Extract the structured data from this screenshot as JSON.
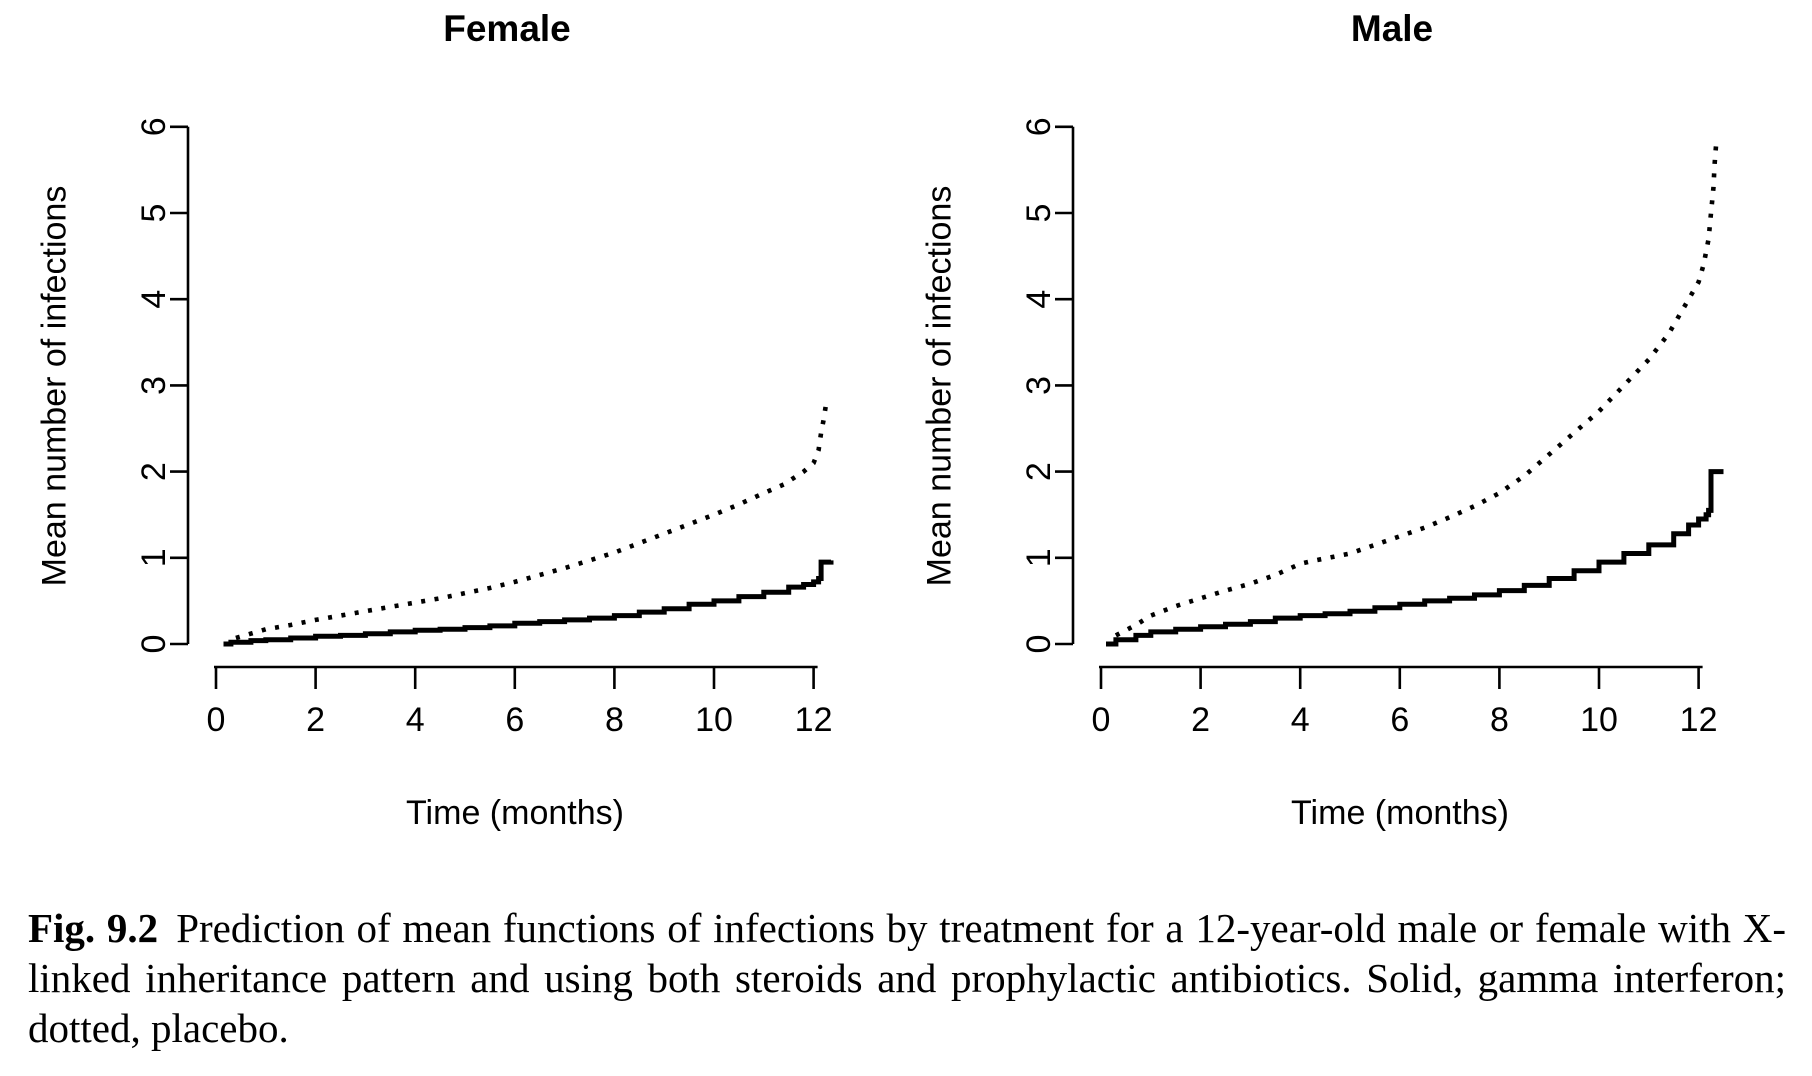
{
  "figure": {
    "caption_label": "Fig. 9.2",
    "caption_text": "Prediction of mean functions of infections by treatment for a 12-year-old male or female with X-linked inheritance pattern and using both steroids and prophylactic antibiotics. Solid, gamma interferon; dotted, placebo."
  },
  "colors": {
    "foreground": "#000000",
    "background": "#ffffff"
  },
  "chart_data": [
    {
      "type": "line",
      "title": "Female",
      "xlabel": "Time (months)",
      "ylabel": "Mean number of infections",
      "xlim": [
        0,
        12.6
      ],
      "ylim": [
        0,
        6
      ],
      "xticks": [
        0,
        2,
        4,
        6,
        8,
        10,
        12
      ],
      "yticks": [
        0,
        1,
        2,
        3,
        4,
        5,
        6
      ],
      "grid": false,
      "legend": "none",
      "series": [
        {
          "name": "gamma interferon",
          "line_style": "solid",
          "step": true,
          "points": [
            [
              0.15,
              0.0
            ],
            [
              0.3,
              0.02
            ],
            [
              0.7,
              0.04
            ],
            [
              1,
              0.05
            ],
            [
              1.5,
              0.07
            ],
            [
              2,
              0.09
            ],
            [
              2.5,
              0.1
            ],
            [
              3,
              0.12
            ],
            [
              3.5,
              0.14
            ],
            [
              4,
              0.16
            ],
            [
              4.5,
              0.17
            ],
            [
              5,
              0.19
            ],
            [
              5.5,
              0.21
            ],
            [
              6,
              0.24
            ],
            [
              6.5,
              0.26
            ],
            [
              7,
              0.28
            ],
            [
              7.5,
              0.3
            ],
            [
              8,
              0.33
            ],
            [
              8.5,
              0.37
            ],
            [
              9,
              0.41
            ],
            [
              9.5,
              0.46
            ],
            [
              10,
              0.5
            ],
            [
              10.5,
              0.55
            ],
            [
              11,
              0.6
            ],
            [
              11.5,
              0.66
            ],
            [
              11.8,
              0.69
            ],
            [
              12,
              0.72
            ],
            [
              12.1,
              0.76
            ],
            [
              12.15,
              0.95
            ],
            [
              12.35,
              0.97
            ]
          ]
        },
        {
          "name": "placebo",
          "line_style": "dotted",
          "step": false,
          "points": [
            [
              0.4,
              0.07
            ],
            [
              1,
              0.17
            ],
            [
              1.5,
              0.22
            ],
            [
              2,
              0.28
            ],
            [
              2.5,
              0.33
            ],
            [
              3,
              0.38
            ],
            [
              3.5,
              0.43
            ],
            [
              4,
              0.48
            ],
            [
              4.5,
              0.53
            ],
            [
              5,
              0.59
            ],
            [
              5.5,
              0.65
            ],
            [
              6,
              0.72
            ],
            [
              6.5,
              0.8
            ],
            [
              7,
              0.88
            ],
            [
              7.5,
              0.97
            ],
            [
              8,
              1.06
            ],
            [
              8.5,
              1.17
            ],
            [
              9,
              1.28
            ],
            [
              9.5,
              1.39
            ],
            [
              10,
              1.5
            ],
            [
              10.5,
              1.62
            ],
            [
              11,
              1.75
            ],
            [
              11.4,
              1.85
            ],
            [
              11.8,
              2.0
            ],
            [
              12,
              2.1
            ],
            [
              12.1,
              2.25
            ],
            [
              12.15,
              2.45
            ],
            [
              12.2,
              2.6
            ],
            [
              12.25,
              2.78
            ]
          ]
        }
      ]
    },
    {
      "type": "line",
      "title": "Male",
      "xlabel": "Time (months)",
      "ylabel": "Mean number of infections",
      "xlim": [
        0,
        12.6
      ],
      "ylim": [
        0,
        6
      ],
      "xticks": [
        0,
        2,
        4,
        6,
        8,
        10,
        12
      ],
      "yticks": [
        0,
        1,
        2,
        3,
        4,
        5,
        6
      ],
      "grid": false,
      "legend": "none",
      "series": [
        {
          "name": "gamma interferon",
          "line_style": "solid",
          "step": true,
          "points": [
            [
              0.1,
              0.0
            ],
            [
              0.3,
              0.05
            ],
            [
              0.7,
              0.1
            ],
            [
              1,
              0.14
            ],
            [
              1.5,
              0.17
            ],
            [
              2,
              0.2
            ],
            [
              2.5,
              0.23
            ],
            [
              3,
              0.26
            ],
            [
              3.5,
              0.3
            ],
            [
              4,
              0.33
            ],
            [
              4.5,
              0.35
            ],
            [
              5,
              0.38
            ],
            [
              5.5,
              0.42
            ],
            [
              6,
              0.46
            ],
            [
              6.5,
              0.5
            ],
            [
              7,
              0.53
            ],
            [
              7.5,
              0.57
            ],
            [
              8,
              0.62
            ],
            [
              8.5,
              0.68
            ],
            [
              9,
              0.76
            ],
            [
              9.5,
              0.85
            ],
            [
              10,
              0.95
            ],
            [
              10.5,
              1.05
            ],
            [
              11,
              1.15
            ],
            [
              11.5,
              1.28
            ],
            [
              11.8,
              1.38
            ],
            [
              12,
              1.45
            ],
            [
              12.15,
              1.5
            ],
            [
              12.2,
              1.55
            ],
            [
              12.25,
              2.0
            ],
            [
              12.5,
              2.0
            ]
          ]
        },
        {
          "name": "placebo",
          "line_style": "dotted",
          "step": false,
          "points": [
            [
              0.3,
              0.1
            ],
            [
              0.7,
              0.22
            ],
            [
              1,
              0.33
            ],
            [
              1.5,
              0.44
            ],
            [
              2,
              0.53
            ],
            [
              2.5,
              0.62
            ],
            [
              3,
              0.7
            ],
            [
              3.5,
              0.8
            ],
            [
              4,
              0.93
            ],
            [
              4.3,
              0.97
            ],
            [
              5,
              1.05
            ],
            [
              5.5,
              1.15
            ],
            [
              6,
              1.25
            ],
            [
              6.5,
              1.35
            ],
            [
              7,
              1.47
            ],
            [
              7.5,
              1.6
            ],
            [
              8,
              1.75
            ],
            [
              8.5,
              1.95
            ],
            [
              9,
              2.2
            ],
            [
              9.5,
              2.45
            ],
            [
              10,
              2.7
            ],
            [
              10.5,
              3.0
            ],
            [
              11,
              3.3
            ],
            [
              11.4,
              3.6
            ],
            [
              11.7,
              3.9
            ],
            [
              12,
              4.2
            ],
            [
              12.1,
              4.4
            ],
            [
              12.2,
              4.7
            ],
            [
              12.25,
              5.0
            ],
            [
              12.3,
              5.3
            ],
            [
              12.32,
              5.55
            ],
            [
              12.35,
              5.78
            ]
          ]
        }
      ]
    }
  ]
}
